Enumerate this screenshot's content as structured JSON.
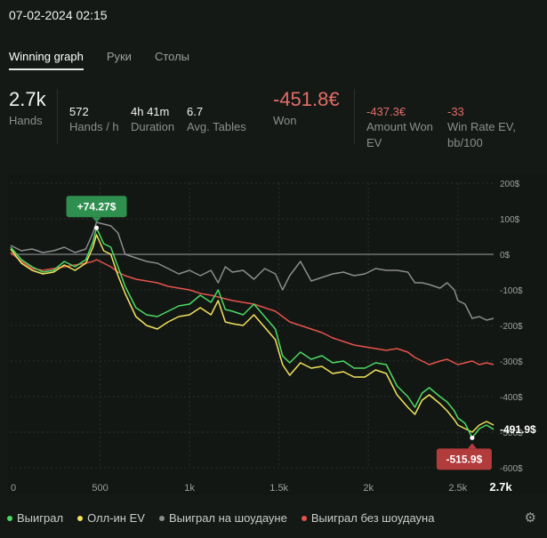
{
  "session": {
    "date": "07-02-2024 02:15"
  },
  "tabs": [
    {
      "label": "Winning graph",
      "active": true
    },
    {
      "label": "Руки",
      "active": false
    },
    {
      "label": "Столы",
      "active": false
    }
  ],
  "stats": {
    "hands": {
      "value": "2.7k",
      "label": "Hands"
    },
    "hands_per_hour": {
      "value": "572",
      "label": "Hands / h"
    },
    "duration": {
      "value": "4h 41m",
      "label": "Duration"
    },
    "avg_tables": {
      "value": "6.7",
      "label": "Avg. Tables"
    },
    "won": {
      "value": "-451.8€",
      "label": "Won"
    },
    "amount_won_ev": {
      "value": "-437.3€",
      "label": "Amount Won EV"
    },
    "win_rate_ev": {
      "value": "-33",
      "label": "Win Rate EV, bb/100"
    }
  },
  "colors": {
    "won": "#4cd964",
    "allin_ev": "#f2e35c",
    "showdown": "#8c8c8c",
    "non_showdown": "#e5534b",
    "negative": "#e26d67",
    "positive_badge": "#2f8f4e",
    "negative_badge": "#b23b3b"
  },
  "legend": [
    {
      "label": "Выиграл",
      "color": "#4cd964",
      "icon": "dot-icon"
    },
    {
      "label": "Олл-ин EV",
      "color": "#f2e35c",
      "icon": "dot-icon"
    },
    {
      "label": "Выиграл на шоудауне",
      "color": "#8c8c8c",
      "icon": "dot-icon"
    },
    {
      "label": "Выиграл без шоудауна",
      "color": "#e5534b",
      "icon": "dot-icon"
    }
  ],
  "settings_icon": "gear-icon",
  "chart_data": {
    "type": "line",
    "xlim": [
      0,
      2700
    ],
    "ylim": [
      -600,
      200
    ],
    "x_ticks": [
      {
        "value": 0,
        "label": "0"
      },
      {
        "value": 500,
        "label": "500"
      },
      {
        "value": 1000,
        "label": "1k"
      },
      {
        "value": 1500,
        "label": "1.5k"
      },
      {
        "value": 2000,
        "label": "2k"
      },
      {
        "value": 2500,
        "label": "2.5k"
      },
      {
        "value": 2700,
        "label": "2.7k"
      }
    ],
    "y_ticks": [
      {
        "value": 200,
        "label": "200$"
      },
      {
        "value": 100,
        "label": "100$"
      },
      {
        "value": 0,
        "label": "0$"
      },
      {
        "value": -100,
        "label": "-100$"
      },
      {
        "value": -200,
        "label": "-200$"
      },
      {
        "value": -300,
        "label": "-300$"
      },
      {
        "value": -400,
        "label": "-400$"
      },
      {
        "value": -500,
        "label": "-500$"
      },
      {
        "value": -600,
        "label": "-600$"
      }
    ],
    "grid": true,
    "annotations": {
      "max": {
        "label": "+74.27$",
        "x": 480,
        "y": 74.27
      },
      "min": {
        "label": "-515.9$",
        "x": 2580,
        "y": -515.9
      },
      "end": {
        "label": "-491.9$",
        "x": 2700,
        "y": -491.9
      }
    },
    "series": [
      {
        "name": "Выиграл",
        "color": "#4cd964",
        "x": [
          0,
          60,
          120,
          180,
          240,
          300,
          360,
          420,
          460,
          480,
          520,
          560,
          600,
          640,
          700,
          760,
          820,
          880,
          940,
          1000,
          1060,
          1120,
          1160,
          1200,
          1240,
          1300,
          1360,
          1420,
          1480,
          1520,
          1560,
          1620,
          1680,
          1740,
          1800,
          1860,
          1920,
          1980,
          2040,
          2100,
          2160,
          2220,
          2260,
          2300,
          2340,
          2400,
          2440,
          2480,
          2500,
          2540,
          2580,
          2620,
          2660,
          2700
        ],
        "y": [
          20,
          -15,
          -35,
          -50,
          -45,
          -20,
          -35,
          -15,
          35,
          74.27,
          30,
          20,
          -35,
          -90,
          -150,
          -170,
          -175,
          -160,
          -145,
          -140,
          -115,
          -135,
          -100,
          -155,
          -160,
          -170,
          -140,
          -175,
          -210,
          -285,
          -305,
          -275,
          -295,
          -285,
          -305,
          -300,
          -320,
          -320,
          -305,
          -310,
          -370,
          -400,
          -430,
          -390,
          -375,
          -400,
          -415,
          -440,
          -460,
          -475,
          -515.9,
          -490,
          -480,
          -491.9
        ]
      },
      {
        "name": "Олл-ин EV",
        "color": "#f2e35c",
        "x": [
          0,
          60,
          120,
          180,
          240,
          300,
          360,
          420,
          460,
          480,
          520,
          560,
          600,
          640,
          700,
          760,
          820,
          880,
          940,
          1000,
          1060,
          1120,
          1160,
          1200,
          1240,
          1300,
          1360,
          1420,
          1480,
          1520,
          1560,
          1620,
          1680,
          1740,
          1800,
          1860,
          1920,
          1980,
          2040,
          2100,
          2160,
          2220,
          2260,
          2300,
          2340,
          2400,
          2440,
          2480,
          2500,
          2540,
          2580,
          2620,
          2660,
          2700
        ],
        "y": [
          15,
          -25,
          -45,
          -55,
          -50,
          -30,
          -45,
          -25,
          20,
          55,
          10,
          0,
          -60,
          -110,
          -175,
          -200,
          -210,
          -190,
          -175,
          -170,
          -150,
          -170,
          -130,
          -190,
          -195,
          -200,
          -170,
          -205,
          -240,
          -310,
          -340,
          -305,
          -320,
          -315,
          -335,
          -330,
          -345,
          -345,
          -325,
          -335,
          -395,
          -430,
          -450,
          -410,
          -395,
          -420,
          -440,
          -465,
          -480,
          -490,
          -500,
          -480,
          -470,
          -480
        ]
      },
      {
        "name": "Выиграл на шоудауне",
        "color": "#8c8c8c",
        "x": [
          0,
          60,
          120,
          180,
          240,
          300,
          360,
          420,
          460,
          480,
          520,
          560,
          600,
          640,
          700,
          760,
          820,
          880,
          940,
          1000,
          1060,
          1120,
          1160,
          1200,
          1240,
          1300,
          1360,
          1420,
          1480,
          1520,
          1560,
          1620,
          1680,
          1740,
          1800,
          1860,
          1920,
          1980,
          2040,
          2100,
          2160,
          2220,
          2260,
          2300,
          2340,
          2400,
          2440,
          2480,
          2500,
          2540,
          2580,
          2620,
          2660,
          2700
        ],
        "y": [
          25,
          10,
          15,
          5,
          10,
          20,
          5,
          15,
          60,
          90,
          85,
          80,
          60,
          0,
          -10,
          -20,
          -25,
          -40,
          -55,
          -45,
          -60,
          -45,
          -80,
          -35,
          -50,
          -45,
          -70,
          -40,
          -55,
          -100,
          -60,
          -20,
          -75,
          -65,
          -55,
          -50,
          -60,
          -55,
          -40,
          -45,
          -45,
          -50,
          -80,
          -80,
          -85,
          -95,
          -80,
          -100,
          -130,
          -140,
          -180,
          -175,
          -185,
          -180
        ]
      },
      {
        "name": "Выиграл без шоудауна",
        "color": "#e5534b",
        "x": [
          0,
          60,
          120,
          180,
          240,
          300,
          360,
          420,
          460,
          480,
          520,
          560,
          600,
          640,
          700,
          760,
          820,
          880,
          940,
          1000,
          1060,
          1120,
          1160,
          1200,
          1240,
          1300,
          1360,
          1420,
          1480,
          1520,
          1560,
          1620,
          1680,
          1740,
          1800,
          1860,
          1920,
          1980,
          2040,
          2100,
          2160,
          2220,
          2260,
          2300,
          2340,
          2400,
          2440,
          2480,
          2500,
          2540,
          2580,
          2620,
          2660,
          2700
        ],
        "y": [
          5,
          -20,
          -40,
          -45,
          -40,
          -35,
          -30,
          -25,
          -20,
          -15,
          -25,
          -35,
          -50,
          -60,
          -70,
          -75,
          -80,
          -90,
          -95,
          -100,
          -110,
          -115,
          -120,
          -125,
          -130,
          -135,
          -140,
          -150,
          -160,
          -175,
          -190,
          -200,
          -210,
          -220,
          -235,
          -245,
          -255,
          -260,
          -265,
          -270,
          -265,
          -275,
          -290,
          -300,
          -310,
          -300,
          -295,
          -305,
          -310,
          -305,
          -300,
          -310,
          -305,
          -310
        ]
      }
    ]
  }
}
